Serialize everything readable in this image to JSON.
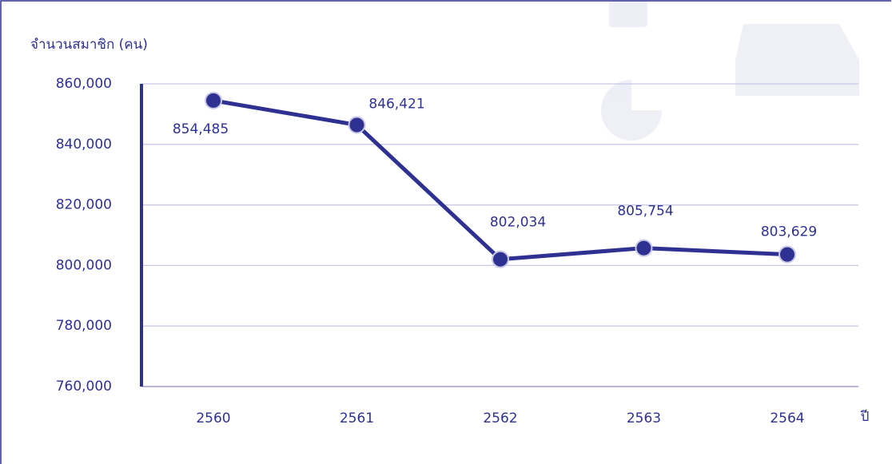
{
  "chart_data": {
    "type": "line",
    "y_axis_title": "จำนวนสมาชิก (คน)",
    "x_axis_title": "ปี",
    "categories": [
      "2560",
      "2561",
      "2562",
      "2563",
      "2564"
    ],
    "values": [
      854485,
      846421,
      802034,
      805754,
      803629
    ],
    "value_labels": [
      "854,485",
      "846,421",
      "802,034",
      "805,754",
      "803,629"
    ],
    "color": "#2e3192",
    "ylim": [
      760000,
      860000
    ],
    "yticks": [
      {
        "value": 760000,
        "label": "760,000"
      },
      {
        "value": 780000,
        "label": "780,000"
      },
      {
        "value": 800000,
        "label": "800,000"
      },
      {
        "value": 820000,
        "label": "820,000"
      },
      {
        "value": 840000,
        "label": "840,000"
      },
      {
        "value": 860000,
        "label": "860,000"
      }
    ],
    "grid": true
  }
}
